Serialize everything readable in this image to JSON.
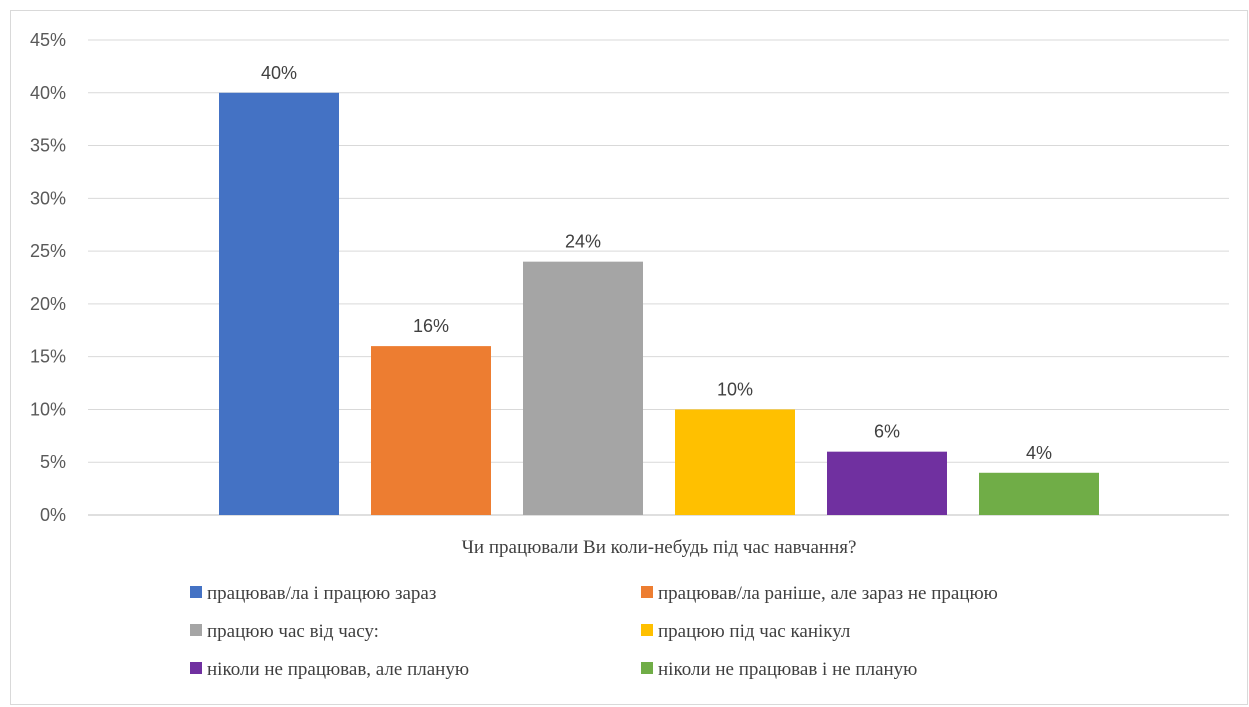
{
  "chart_data": {
    "type": "bar",
    "title": "",
    "xlabel": "Чи працювали Ви коли-небудь під час навчання?",
    "ylabel": "",
    "ylim": [
      0,
      45
    ],
    "ytick_step": 5,
    "ytick_suffix": "%",
    "grid": true,
    "legend_position": "bottom",
    "categories": [
      "працював/ла і працюю зараз",
      "працював/ла раніше, але зараз не працюю",
      "працюю час від часу:",
      "працюю під час канікул",
      "ніколи не працював, але планую",
      "ніколи не працював і не планую"
    ],
    "values": [
      40,
      16,
      24,
      10,
      6,
      4
    ],
    "data_labels": [
      "40%",
      "16%",
      "24%",
      "10%",
      "6%",
      "4%"
    ],
    "colors": [
      "#4472c4",
      "#ed7d31",
      "#a5a5a5",
      "#ffc000",
      "#7030a0",
      "#70ad47"
    ]
  }
}
